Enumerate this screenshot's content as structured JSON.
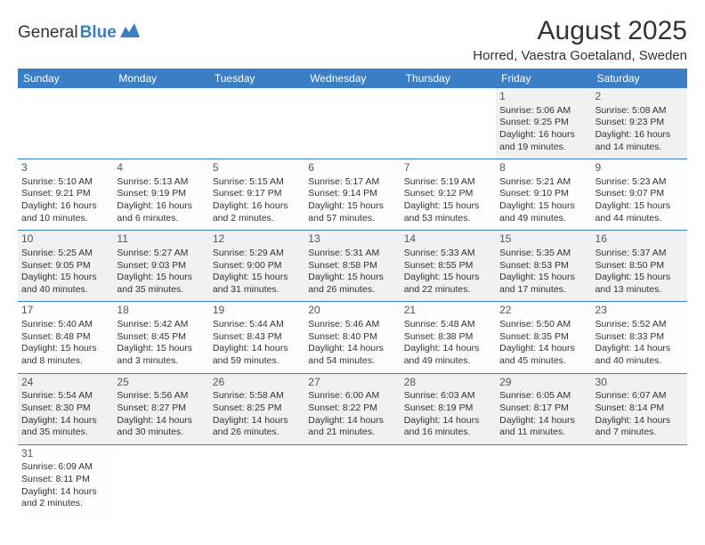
{
  "logo": {
    "text1": "General",
    "text2": "Blue"
  },
  "title": "August 2025",
  "location": "Horred, Vaestra Goetaland, Sweden",
  "header_bg": "#3a7fc4",
  "header_fg": "#ffffff",
  "row_divider_color": "#3a7fc4",
  "alt_row_bg": "#f1f1f1",
  "days": [
    "Sunday",
    "Monday",
    "Tuesday",
    "Wednesday",
    "Thursday",
    "Friday",
    "Saturday"
  ],
  "weeks": [
    [
      null,
      null,
      null,
      null,
      null,
      {
        "n": "1",
        "sr": "Sunrise: 5:06 AM",
        "ss": "Sunset: 9:25 PM",
        "dl1": "Daylight: 16 hours",
        "dl2": "and 19 minutes."
      },
      {
        "n": "2",
        "sr": "Sunrise: 5:08 AM",
        "ss": "Sunset: 9:23 PM",
        "dl1": "Daylight: 16 hours",
        "dl2": "and 14 minutes."
      }
    ],
    [
      {
        "n": "3",
        "sr": "Sunrise: 5:10 AM",
        "ss": "Sunset: 9:21 PM",
        "dl1": "Daylight: 16 hours",
        "dl2": "and 10 minutes."
      },
      {
        "n": "4",
        "sr": "Sunrise: 5:13 AM",
        "ss": "Sunset: 9:19 PM",
        "dl1": "Daylight: 16 hours",
        "dl2": "and 6 minutes."
      },
      {
        "n": "5",
        "sr": "Sunrise: 5:15 AM",
        "ss": "Sunset: 9:17 PM",
        "dl1": "Daylight: 16 hours",
        "dl2": "and 2 minutes."
      },
      {
        "n": "6",
        "sr": "Sunrise: 5:17 AM",
        "ss": "Sunset: 9:14 PM",
        "dl1": "Daylight: 15 hours",
        "dl2": "and 57 minutes."
      },
      {
        "n": "7",
        "sr": "Sunrise: 5:19 AM",
        "ss": "Sunset: 9:12 PM",
        "dl1": "Daylight: 15 hours",
        "dl2": "and 53 minutes."
      },
      {
        "n": "8",
        "sr": "Sunrise: 5:21 AM",
        "ss": "Sunset: 9:10 PM",
        "dl1": "Daylight: 15 hours",
        "dl2": "and 49 minutes."
      },
      {
        "n": "9",
        "sr": "Sunrise: 5:23 AM",
        "ss": "Sunset: 9:07 PM",
        "dl1": "Daylight: 15 hours",
        "dl2": "and 44 minutes."
      }
    ],
    [
      {
        "n": "10",
        "sr": "Sunrise: 5:25 AM",
        "ss": "Sunset: 9:05 PM",
        "dl1": "Daylight: 15 hours",
        "dl2": "and 40 minutes."
      },
      {
        "n": "11",
        "sr": "Sunrise: 5:27 AM",
        "ss": "Sunset: 9:03 PM",
        "dl1": "Daylight: 15 hours",
        "dl2": "and 35 minutes."
      },
      {
        "n": "12",
        "sr": "Sunrise: 5:29 AM",
        "ss": "Sunset: 9:00 PM",
        "dl1": "Daylight: 15 hours",
        "dl2": "and 31 minutes."
      },
      {
        "n": "13",
        "sr": "Sunrise: 5:31 AM",
        "ss": "Sunset: 8:58 PM",
        "dl1": "Daylight: 15 hours",
        "dl2": "and 26 minutes."
      },
      {
        "n": "14",
        "sr": "Sunrise: 5:33 AM",
        "ss": "Sunset: 8:55 PM",
        "dl1": "Daylight: 15 hours",
        "dl2": "and 22 minutes."
      },
      {
        "n": "15",
        "sr": "Sunrise: 5:35 AM",
        "ss": "Sunset: 8:53 PM",
        "dl1": "Daylight: 15 hours",
        "dl2": "and 17 minutes."
      },
      {
        "n": "16",
        "sr": "Sunrise: 5:37 AM",
        "ss": "Sunset: 8:50 PM",
        "dl1": "Daylight: 15 hours",
        "dl2": "and 13 minutes."
      }
    ],
    [
      {
        "n": "17",
        "sr": "Sunrise: 5:40 AM",
        "ss": "Sunset: 8:48 PM",
        "dl1": "Daylight: 15 hours",
        "dl2": "and 8 minutes."
      },
      {
        "n": "18",
        "sr": "Sunrise: 5:42 AM",
        "ss": "Sunset: 8:45 PM",
        "dl1": "Daylight: 15 hours",
        "dl2": "and 3 minutes."
      },
      {
        "n": "19",
        "sr": "Sunrise: 5:44 AM",
        "ss": "Sunset: 8:43 PM",
        "dl1": "Daylight: 14 hours",
        "dl2": "and 59 minutes."
      },
      {
        "n": "20",
        "sr": "Sunrise: 5:46 AM",
        "ss": "Sunset: 8:40 PM",
        "dl1": "Daylight: 14 hours",
        "dl2": "and 54 minutes."
      },
      {
        "n": "21",
        "sr": "Sunrise: 5:48 AM",
        "ss": "Sunset: 8:38 PM",
        "dl1": "Daylight: 14 hours",
        "dl2": "and 49 minutes."
      },
      {
        "n": "22",
        "sr": "Sunrise: 5:50 AM",
        "ss": "Sunset: 8:35 PM",
        "dl1": "Daylight: 14 hours",
        "dl2": "and 45 minutes."
      },
      {
        "n": "23",
        "sr": "Sunrise: 5:52 AM",
        "ss": "Sunset: 8:33 PM",
        "dl1": "Daylight: 14 hours",
        "dl2": "and 40 minutes."
      }
    ],
    [
      {
        "n": "24",
        "sr": "Sunrise: 5:54 AM",
        "ss": "Sunset: 8:30 PM",
        "dl1": "Daylight: 14 hours",
        "dl2": "and 35 minutes."
      },
      {
        "n": "25",
        "sr": "Sunrise: 5:56 AM",
        "ss": "Sunset: 8:27 PM",
        "dl1": "Daylight: 14 hours",
        "dl2": "and 30 minutes."
      },
      {
        "n": "26",
        "sr": "Sunrise: 5:58 AM",
        "ss": "Sunset: 8:25 PM",
        "dl1": "Daylight: 14 hours",
        "dl2": "and 26 minutes."
      },
      {
        "n": "27",
        "sr": "Sunrise: 6:00 AM",
        "ss": "Sunset: 8:22 PM",
        "dl1": "Daylight: 14 hours",
        "dl2": "and 21 minutes."
      },
      {
        "n": "28",
        "sr": "Sunrise: 6:03 AM",
        "ss": "Sunset: 8:19 PM",
        "dl1": "Daylight: 14 hours",
        "dl2": "and 16 minutes."
      },
      {
        "n": "29",
        "sr": "Sunrise: 6:05 AM",
        "ss": "Sunset: 8:17 PM",
        "dl1": "Daylight: 14 hours",
        "dl2": "and 11 minutes."
      },
      {
        "n": "30",
        "sr": "Sunrise: 6:07 AM",
        "ss": "Sunset: 8:14 PM",
        "dl1": "Daylight: 14 hours",
        "dl2": "and 7 minutes."
      }
    ],
    [
      {
        "n": "31",
        "sr": "Sunrise: 6:09 AM",
        "ss": "Sunset: 8:11 PM",
        "dl1": "Daylight: 14 hours",
        "dl2": "and 2 minutes."
      },
      null,
      null,
      null,
      null,
      null,
      null
    ]
  ]
}
